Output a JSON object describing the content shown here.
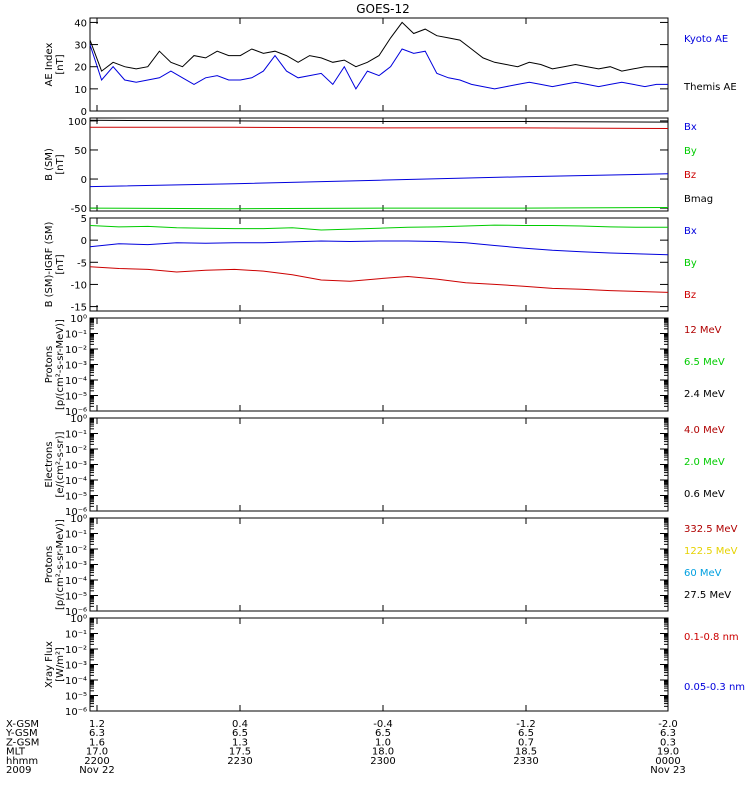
{
  "title": "GOES-12",
  "colors": {
    "black": "#000000",
    "blue": "#0000dd",
    "green": "#00cc00",
    "red": "#cc0000",
    "darkred": "#b00000",
    "yellow": "#e6d200",
    "cyan": "#00a0e0"
  },
  "x_axis": {
    "ticks": [
      "2200",
      "2230",
      "2300",
      "2330",
      "0000"
    ],
    "rows": [
      {
        "label": "X-GSM",
        "values": [
          "1.2",
          "0.4",
          "-0.4",
          "-1.2",
          "-2.0"
        ]
      },
      {
        "label": "Y-GSM",
        "values": [
          "6.3",
          "6.5",
          "6.5",
          "6.5",
          "6.3"
        ]
      },
      {
        "label": "Z-GSM",
        "values": [
          "1.6",
          "1.3",
          "1.0",
          "0.7",
          "0.3"
        ]
      },
      {
        "label": "MLT",
        "values": [
          "17.0",
          "17.5",
          "18.0",
          "18.5",
          "19.0"
        ]
      },
      {
        "label": "hhmm",
        "values": [
          "2200",
          "2230",
          "2300",
          "2330",
          "0000"
        ]
      },
      {
        "label": "2009",
        "values": [
          "Nov 22",
          "",
          "",
          "",
          "Nov 23"
        ]
      }
    ]
  },
  "chart_data": [
    {
      "type": "line",
      "ylabel": "AE Index [nT]",
      "ylim": [
        0,
        42
      ],
      "yticks": [
        0,
        10,
        20,
        30,
        40
      ],
      "x": [
        0,
        2,
        4,
        6,
        8,
        10,
        12,
        14,
        16,
        18,
        20,
        22,
        24,
        26,
        28,
        30,
        32,
        34,
        36,
        38,
        40,
        42,
        44,
        46,
        48,
        50,
        52,
        54,
        56,
        58,
        60,
        62,
        64,
        66,
        68,
        70,
        72,
        74,
        76,
        78,
        80,
        82,
        84,
        86,
        88,
        90,
        92,
        94,
        96,
        98,
        100
      ],
      "series": [
        {
          "name": "Kyoto AE",
          "color": "blue",
          "values": [
            30,
            14,
            20,
            14,
            13,
            14,
            15,
            18,
            15,
            12,
            15,
            16,
            14,
            14,
            15,
            18,
            25,
            18,
            15,
            16,
            17,
            12,
            20,
            10,
            18,
            16,
            20,
            28,
            26,
            27,
            17,
            15,
            14,
            12,
            11,
            10,
            11,
            12,
            13,
            12,
            11,
            12,
            13,
            12,
            11,
            12,
            13,
            12,
            11,
            12,
            12
          ]
        },
        {
          "name": "Themis AE",
          "color": "black",
          "values": [
            32,
            18,
            22,
            20,
            19,
            20,
            27,
            22,
            20,
            25,
            24,
            27,
            25,
            25,
            28,
            26,
            27,
            25,
            22,
            25,
            24,
            22,
            23,
            20,
            22,
            25,
            33,
            40,
            35,
            37,
            34,
            33,
            32,
            28,
            24,
            22,
            21,
            20,
            22,
            21,
            19,
            20,
            21,
            20,
            19,
            20,
            18,
            19,
            20,
            20,
            20
          ]
        }
      ]
    },
    {
      "type": "line",
      "ylabel": "B (SM) [nT]",
      "ylim": [
        -55,
        105
      ],
      "yticks": [
        -50,
        0,
        50,
        100
      ],
      "x": [
        0,
        25,
        50,
        75,
        100
      ],
      "series": [
        {
          "name": "Bx",
          "color": "blue",
          "values": [
            -13,
            -8,
            -2,
            4,
            9
          ]
        },
        {
          "name": "By",
          "color": "green",
          "values": [
            -50,
            -51,
            -50,
            -50,
            -49
          ]
        },
        {
          "name": "Bz",
          "color": "red",
          "values": [
            89,
            89,
            88,
            88,
            87
          ]
        },
        {
          "name": "Bmag",
          "color": "black",
          "values": [
            101,
            100,
            99,
            99,
            98
          ]
        }
      ]
    },
    {
      "type": "line",
      "ylabel": "B (SM)-IGRF (SM) [nT]",
      "ylim": [
        -16,
        5
      ],
      "yticks": [
        -15,
        -10,
        -5,
        0,
        5
      ],
      "x": [
        0,
        5,
        10,
        15,
        20,
        25,
        30,
        35,
        40,
        45,
        50,
        55,
        60,
        65,
        70,
        75,
        80,
        85,
        90,
        95,
        100
      ],
      "series": [
        {
          "name": "Bx",
          "color": "blue",
          "values": [
            -1.5,
            -0.8,
            -1.0,
            -0.6,
            -0.7,
            -0.6,
            -0.6,
            -0.4,
            -0.2,
            -0.3,
            -0.2,
            -0.2,
            -0.3,
            -0.6,
            -1.2,
            -1.8,
            -2.3,
            -2.6,
            -2.9,
            -3.1,
            -3.3
          ]
        },
        {
          "name": "By",
          "color": "green",
          "values": [
            3.3,
            3.0,
            3.1,
            2.8,
            2.7,
            2.6,
            2.6,
            2.8,
            2.3,
            2.5,
            2.7,
            2.9,
            3.0,
            3.2,
            3.4,
            3.3,
            3.3,
            3.2,
            3.0,
            2.9,
            2.9
          ]
        },
        {
          "name": "Bz",
          "color": "red",
          "values": [
            -6.0,
            -6.4,
            -6.6,
            -7.2,
            -6.8,
            -6.6,
            -7.0,
            -7.8,
            -9.0,
            -9.3,
            -8.7,
            -8.2,
            -8.8,
            -9.6,
            -10.0,
            -10.4,
            -10.9,
            -11.1,
            -11.4,
            -11.6,
            -11.8
          ]
        }
      ]
    },
    {
      "type": "line",
      "scale": "log",
      "ylabel": "Protons [p/(cm²-s-sr-MeV)]",
      "ylim": [
        1e-06,
        1
      ],
      "yticks": [
        "10⁰",
        "10⁻¹",
        "10⁻²",
        "10⁻³",
        "10⁻⁴",
        "10⁻⁵",
        "10⁻⁶"
      ],
      "legend": [
        {
          "name": "12 MeV",
          "color": "darkred"
        },
        {
          "name": "6.5 MeV",
          "color": "green"
        },
        {
          "name": "2.4 MeV",
          "color": "black"
        }
      ]
    },
    {
      "type": "line",
      "scale": "log",
      "ylabel": "Electrons [e/(cm²-s-sr)]",
      "ylim": [
        1e-06,
        1
      ],
      "yticks": [
        "10⁰",
        "10⁻¹",
        "10⁻²",
        "10⁻³",
        "10⁻⁴",
        "10⁻⁵",
        "10⁻⁶"
      ],
      "legend": [
        {
          "name": "4.0 MeV",
          "color": "darkred"
        },
        {
          "name": "2.0 MeV",
          "color": "green"
        },
        {
          "name": "0.6 MeV",
          "color": "black"
        }
      ]
    },
    {
      "type": "line",
      "scale": "log",
      "ylabel": "Protons [p/(cm²-s-sr-MeV)]",
      "ylim": [
        1e-06,
        1
      ],
      "yticks": [
        "10⁰",
        "10⁻¹",
        "10⁻²",
        "10⁻³",
        "10⁻⁴",
        "10⁻⁵",
        "10⁻⁶"
      ],
      "legend": [
        {
          "name": "332.5 MeV",
          "color": "darkred"
        },
        {
          "name": "122.5 MeV",
          "color": "yellow"
        },
        {
          "name": "60 MeV",
          "color": "cyan"
        },
        {
          "name": "27.5 MeV",
          "color": "black"
        }
      ]
    },
    {
      "type": "line",
      "scale": "log",
      "ylabel": "Xray Flux [W/m²]",
      "ylim": [
        1e-06,
        1
      ],
      "yticks": [
        "10⁰",
        "10⁻¹",
        "10⁻²",
        "10⁻³",
        "10⁻⁴",
        "10⁻⁵",
        "10⁻⁶"
      ],
      "legend": [
        {
          "name": "0.1-0.8 nm",
          "color": "red"
        },
        {
          "name": "0.05-0.3 nm",
          "color": "blue"
        }
      ]
    }
  ]
}
